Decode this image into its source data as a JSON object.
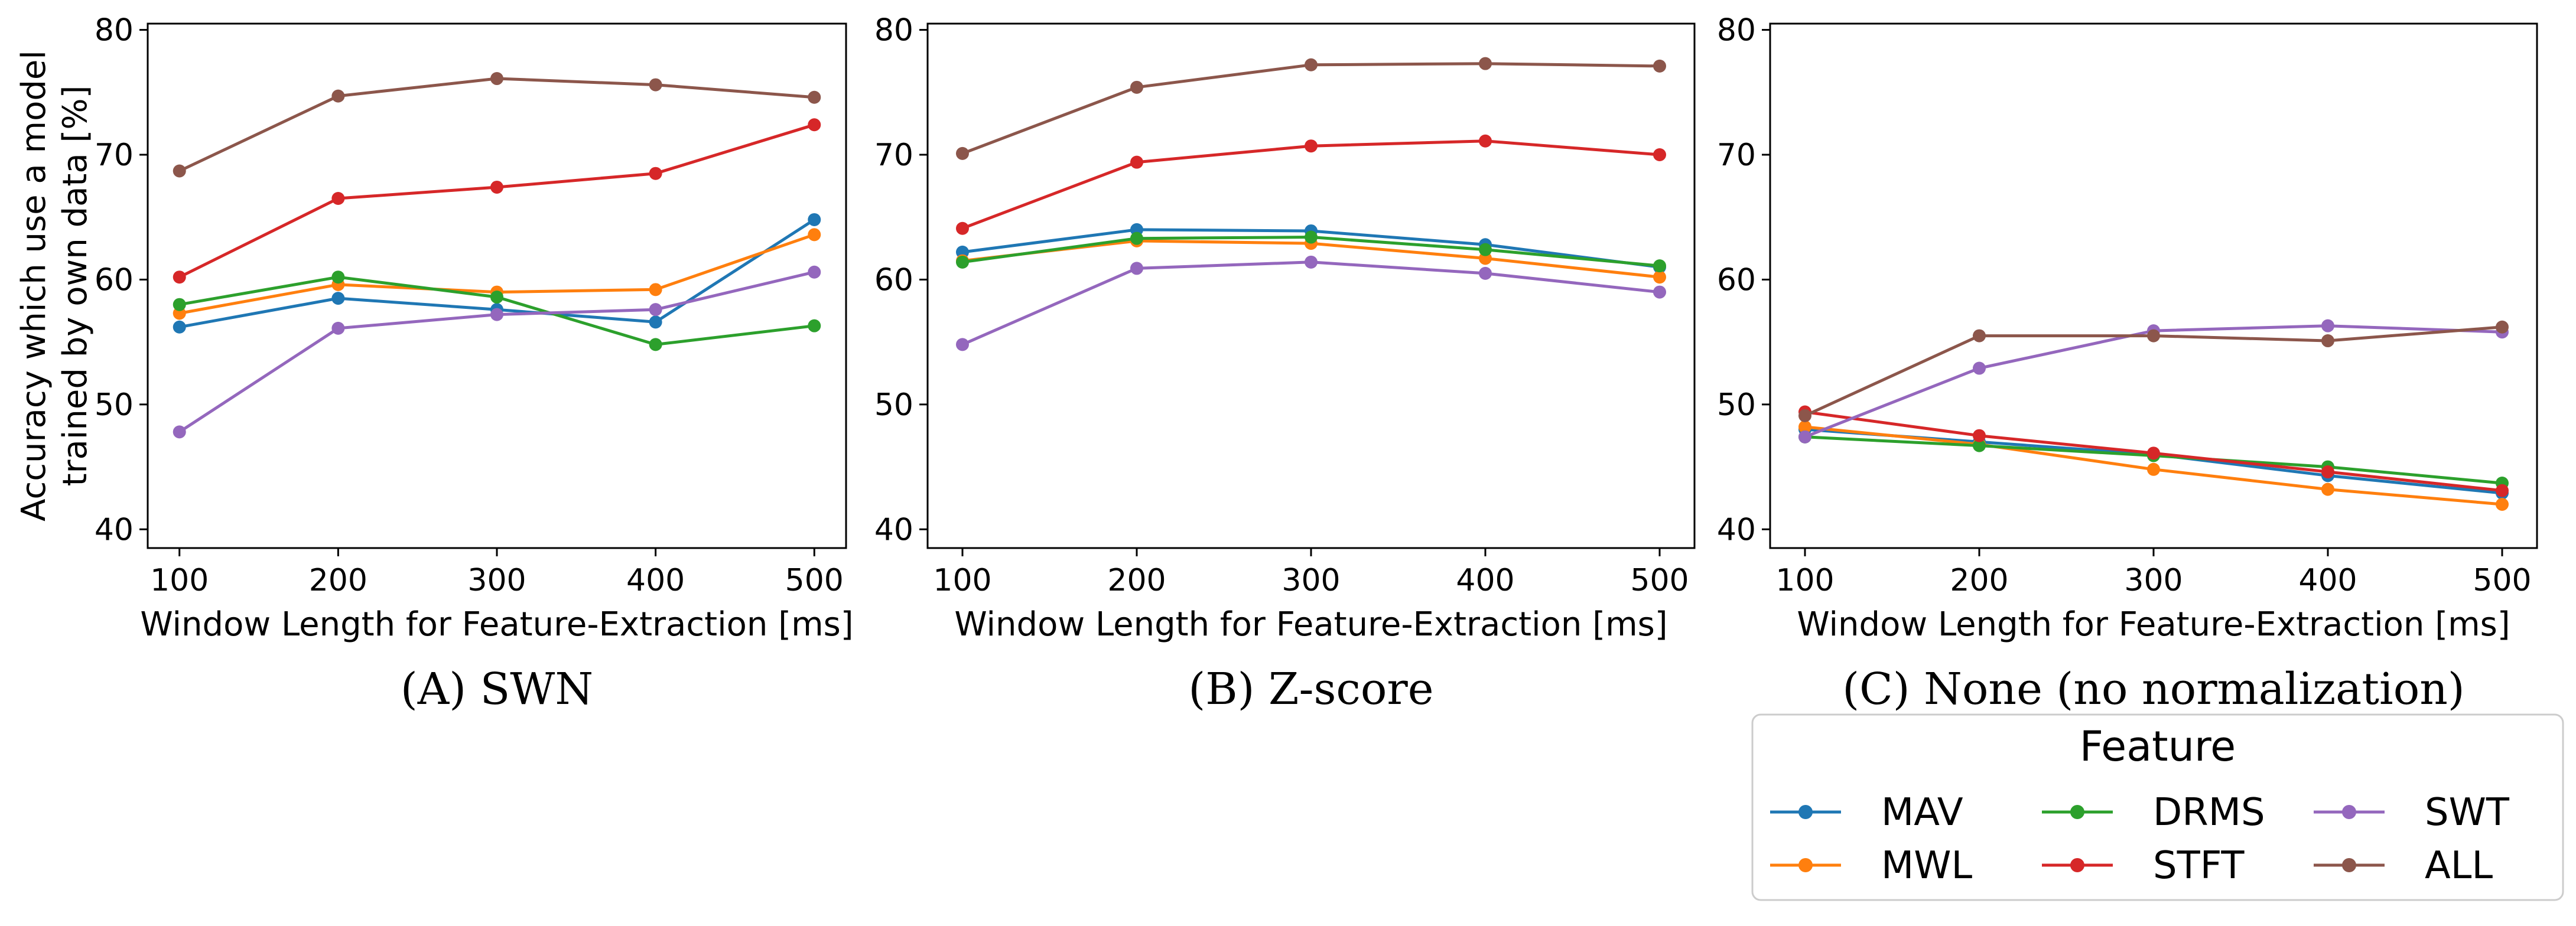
{
  "chart_data": [
    {
      "type": "line",
      "caption": "(A) SWN",
      "xlabel": "Window Length for Feature-Extraction [ms]",
      "ylabel": [
        "Accuracy which use a model",
        "trained by own data [%]"
      ],
      "x": [
        100,
        200,
        300,
        400,
        500
      ],
      "xticks": [
        "100",
        "200",
        "300",
        "400",
        "500"
      ],
      "yticks": [
        "40",
        "50",
        "60",
        "70",
        "80"
      ],
      "ylim": [
        38.5,
        80.5
      ],
      "series": [
        {
          "name": "MAV",
          "color": "#1f77b4",
          "values": [
            56.2,
            58.5,
            57.6,
            56.6,
            64.8
          ]
        },
        {
          "name": "MWL",
          "color": "#ff7f0e",
          "values": [
            57.3,
            59.6,
            59.0,
            59.2,
            63.6
          ]
        },
        {
          "name": "DRMS",
          "color": "#2ca02c",
          "values": [
            58.0,
            60.2,
            58.6,
            54.8,
            56.3
          ]
        },
        {
          "name": "STFT",
          "color": "#d62728",
          "values": [
            60.2,
            66.5,
            67.4,
            68.5,
            72.4
          ]
        },
        {
          "name": "SWT",
          "color": "#9467bd",
          "values": [
            47.8,
            56.1,
            57.2,
            57.6,
            60.6
          ]
        },
        {
          "name": "ALL",
          "color": "#8c564b",
          "values": [
            68.7,
            74.7,
            76.1,
            75.6,
            74.6
          ]
        }
      ]
    },
    {
      "type": "line",
      "caption": "(B) Z-score",
      "xlabel": "Window Length for Feature-Extraction [ms]",
      "x": [
        100,
        200,
        300,
        400,
        500
      ],
      "xticks": [
        "100",
        "200",
        "300",
        "400",
        "500"
      ],
      "yticks": [
        "40",
        "50",
        "60",
        "70",
        "80"
      ],
      "ylim": [
        38.5,
        80.5
      ],
      "series": [
        {
          "name": "MAV",
          "color": "#1f77b4",
          "values": [
            62.2,
            64.0,
            63.9,
            62.8,
            61.0
          ]
        },
        {
          "name": "MWL",
          "color": "#ff7f0e",
          "values": [
            61.5,
            63.1,
            62.9,
            61.7,
            60.2
          ]
        },
        {
          "name": "DRMS",
          "color": "#2ca02c",
          "values": [
            61.4,
            63.3,
            63.4,
            62.4,
            61.1
          ]
        },
        {
          "name": "STFT",
          "color": "#d62728",
          "values": [
            64.1,
            69.4,
            70.7,
            71.1,
            70.0
          ]
        },
        {
          "name": "SWT",
          "color": "#9467bd",
          "values": [
            54.8,
            60.9,
            61.4,
            60.5,
            59.0
          ]
        },
        {
          "name": "ALL",
          "color": "#8c564b",
          "values": [
            70.1,
            75.4,
            77.2,
            77.3,
            77.1
          ]
        }
      ]
    },
    {
      "type": "line",
      "caption": "(C) None (no normalization)",
      "xlabel": "Window Length for Feature-Extraction [ms]",
      "x": [
        100,
        200,
        300,
        400,
        500
      ],
      "xticks": [
        "100",
        "200",
        "300",
        "400",
        "500"
      ],
      "yticks": [
        "40",
        "50",
        "60",
        "70",
        "80"
      ],
      "ylim": [
        38.5,
        80.5
      ],
      "series": [
        {
          "name": "MAV",
          "color": "#1f77b4",
          "values": [
            48.0,
            47.0,
            46.0,
            44.3,
            42.9
          ]
        },
        {
          "name": "MWL",
          "color": "#ff7f0e",
          "values": [
            48.2,
            46.8,
            44.8,
            43.2,
            42.0
          ]
        },
        {
          "name": "DRMS",
          "color": "#2ca02c",
          "values": [
            47.4,
            46.7,
            45.9,
            45.0,
            43.7
          ]
        },
        {
          "name": "STFT",
          "color": "#d62728",
          "values": [
            49.4,
            47.5,
            46.1,
            44.6,
            43.1
          ]
        },
        {
          "name": "SWT",
          "color": "#9467bd",
          "values": [
            47.4,
            52.9,
            55.9,
            56.3,
            55.8
          ]
        },
        {
          "name": "ALL",
          "color": "#8c564b",
          "values": [
            49.1,
            55.5,
            55.5,
            55.1,
            56.2
          ]
        }
      ]
    }
  ],
  "legend": {
    "title": "Feature",
    "entries": [
      {
        "name": "MAV",
        "color": "#1f77b4"
      },
      {
        "name": "DRMS",
        "color": "#2ca02c"
      },
      {
        "name": "SWT",
        "color": "#9467bd"
      },
      {
        "name": "MWL",
        "color": "#ff7f0e"
      },
      {
        "name": "STFT",
        "color": "#d62728"
      },
      {
        "name": "ALL",
        "color": "#8c564b"
      }
    ]
  }
}
